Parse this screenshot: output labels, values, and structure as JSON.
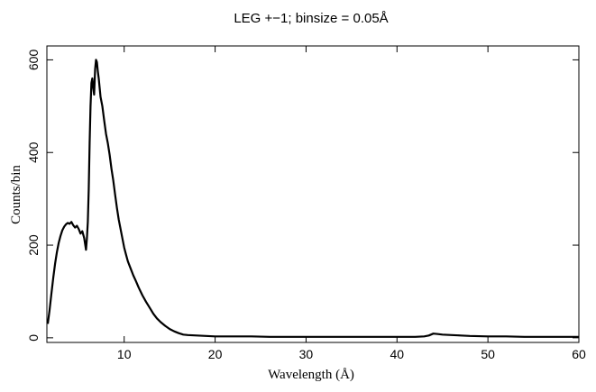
{
  "chart_data": {
    "type": "line",
    "title": "LEG +−1; binsize = 0.05Å",
    "xlabel": "Wavelength (Å)",
    "ylabel": "Counts/bin",
    "xlim": [
      1.5,
      60
    ],
    "ylim": [
      -10,
      630
    ],
    "x_ticks": [
      10,
      20,
      30,
      40,
      50,
      60
    ],
    "y_ticks": [
      0,
      200,
      400,
      600
    ],
    "grid": false,
    "legend": "none",
    "series": [
      {
        "color": "#000000",
        "points": [
          [
            1.6,
            30
          ],
          [
            1.8,
            60
          ],
          [
            2.0,
            95
          ],
          [
            2.2,
            130
          ],
          [
            2.4,
            160
          ],
          [
            2.6,
            185
          ],
          [
            2.8,
            205
          ],
          [
            3.0,
            220
          ],
          [
            3.2,
            232
          ],
          [
            3.4,
            240
          ],
          [
            3.6,
            245
          ],
          [
            3.8,
            248
          ],
          [
            4.0,
            246
          ],
          [
            4.2,
            250
          ],
          [
            4.4,
            243
          ],
          [
            4.6,
            238
          ],
          [
            4.8,
            242
          ],
          [
            5.0,
            235
          ],
          [
            5.2,
            225
          ],
          [
            5.4,
            230
          ],
          [
            5.6,
            215
          ],
          [
            5.8,
            190
          ],
          [
            5.9,
            215
          ],
          [
            6.0,
            250
          ],
          [
            6.1,
            320
          ],
          [
            6.2,
            420
          ],
          [
            6.3,
            500
          ],
          [
            6.4,
            550
          ],
          [
            6.5,
            560
          ],
          [
            6.6,
            540
          ],
          [
            6.7,
            525
          ],
          [
            6.8,
            580
          ],
          [
            6.9,
            600
          ],
          [
            7.0,
            595
          ],
          [
            7.1,
            575
          ],
          [
            7.2,
            560
          ],
          [
            7.4,
            520
          ],
          [
            7.6,
            500
          ],
          [
            7.8,
            470
          ],
          [
            8.0,
            440
          ],
          [
            8.2,
            420
          ],
          [
            8.4,
            395
          ],
          [
            8.6,
            365
          ],
          [
            8.8,
            340
          ],
          [
            9.0,
            310
          ],
          [
            9.2,
            280
          ],
          [
            9.4,
            255
          ],
          [
            9.6,
            235
          ],
          [
            9.8,
            215
          ],
          [
            10.0,
            195
          ],
          [
            10.2,
            180
          ],
          [
            10.4,
            165
          ],
          [
            10.6,
            155
          ],
          [
            10.8,
            145
          ],
          [
            11.0,
            135
          ],
          [
            11.3,
            122
          ],
          [
            11.6,
            108
          ],
          [
            12.0,
            92
          ],
          [
            12.4,
            78
          ],
          [
            12.8,
            65
          ],
          [
            13.2,
            52
          ],
          [
            13.6,
            42
          ],
          [
            14.0,
            34
          ],
          [
            14.5,
            26
          ],
          [
            15.0,
            19
          ],
          [
            15.5,
            14
          ],
          [
            16.0,
            10
          ],
          [
            16.5,
            7
          ],
          [
            17.0,
            6
          ],
          [
            18.0,
            5
          ],
          [
            19.0,
            4
          ],
          [
            20.0,
            3
          ],
          [
            22.0,
            3
          ],
          [
            24.0,
            3
          ],
          [
            26.0,
            2
          ],
          [
            28.0,
            2
          ],
          [
            30.0,
            2
          ],
          [
            32.0,
            2
          ],
          [
            34.0,
            2
          ],
          [
            36.0,
            2
          ],
          [
            38.0,
            2
          ],
          [
            40.0,
            2
          ],
          [
            42.0,
            2
          ],
          [
            43.0,
            3
          ],
          [
            43.5,
            5
          ],
          [
            44.0,
            9
          ],
          [
            44.5,
            8
          ],
          [
            45.0,
            7
          ],
          [
            46.0,
            6
          ],
          [
            47.0,
            5
          ],
          [
            48.0,
            4
          ],
          [
            50.0,
            3
          ],
          [
            52.0,
            3
          ],
          [
            54.0,
            2
          ],
          [
            56.0,
            2
          ],
          [
            58.0,
            2
          ],
          [
            60.0,
            2
          ]
        ]
      }
    ]
  }
}
